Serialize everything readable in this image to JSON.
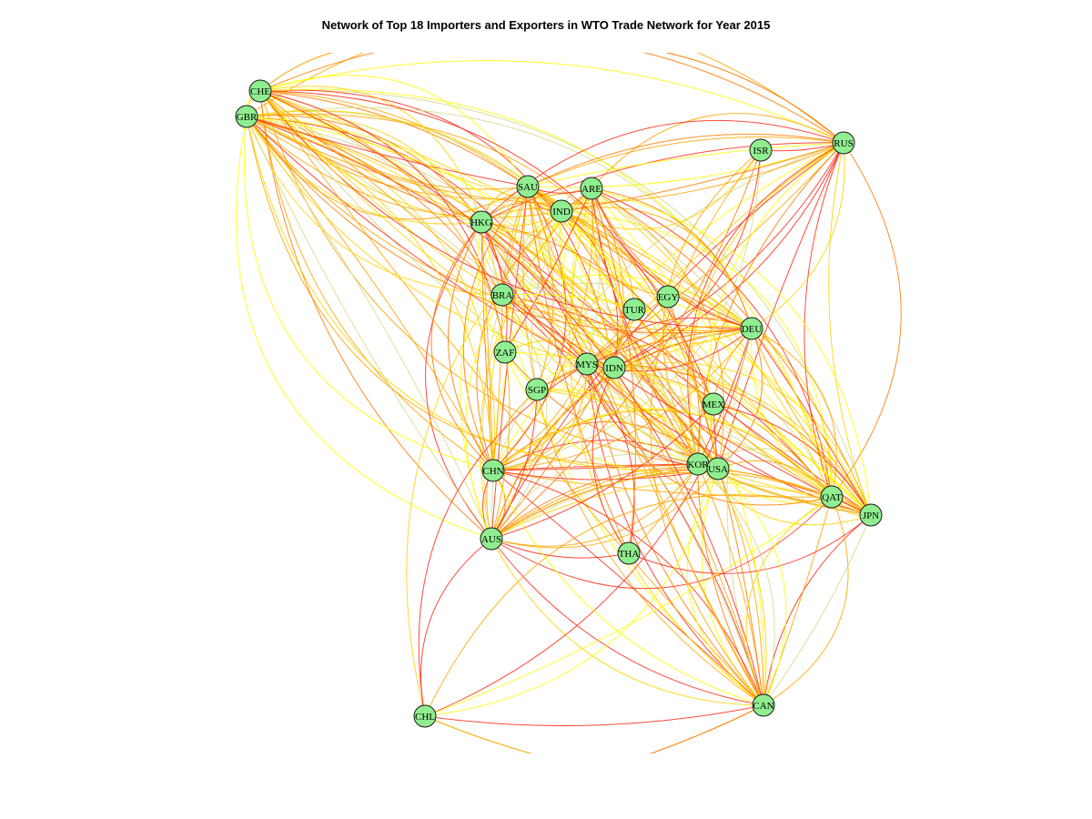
{
  "title": "Network of Top 18 Importers and Exporters in WTO Trade Network for Year 2015",
  "colors": {
    "node_fill": "#90EE90",
    "node_stroke": "#1a1a1a",
    "edge_palette": [
      "#FF2A1A",
      "#FF7A00",
      "#FFA500",
      "#FFD200",
      "#FFFF00",
      "#D6D98A"
    ]
  },
  "nodes": [
    {
      "id": "CHE",
      "label": "CHE"
    },
    {
      "id": "GBR",
      "label": "GBR"
    },
    {
      "id": "RUS",
      "label": "RUS"
    },
    {
      "id": "ISR",
      "label": "ISR"
    },
    {
      "id": "SAU",
      "label": "SAU"
    },
    {
      "id": "ARE",
      "label": "ARE"
    },
    {
      "id": "IND",
      "label": "IND"
    },
    {
      "id": "HKG",
      "label": "HKG"
    },
    {
      "id": "BRA",
      "label": "BRA"
    },
    {
      "id": "EGY",
      "label": "EGY"
    },
    {
      "id": "TUR",
      "label": "TUR"
    },
    {
      "id": "DEU",
      "label": "DEU"
    },
    {
      "id": "ZAF",
      "label": "ZAF"
    },
    {
      "id": "MYS",
      "label": "MYS"
    },
    {
      "id": "IDN",
      "label": "IDN"
    },
    {
      "id": "SGP",
      "label": "SGP"
    },
    {
      "id": "MEX",
      "label": "MEX"
    },
    {
      "id": "CHN",
      "label": "CHN"
    },
    {
      "id": "KOR",
      "label": "KOR"
    },
    {
      "id": "USA",
      "label": "USA"
    },
    {
      "id": "QAT",
      "label": "QAT"
    },
    {
      "id": "JPN",
      "label": "JPN"
    },
    {
      "id": "AUS",
      "label": "AUS"
    },
    {
      "id": "THA",
      "label": "THA"
    },
    {
      "id": "CHL",
      "label": "CHL"
    },
    {
      "id": "CAN",
      "label": "CAN"
    }
  ]
}
